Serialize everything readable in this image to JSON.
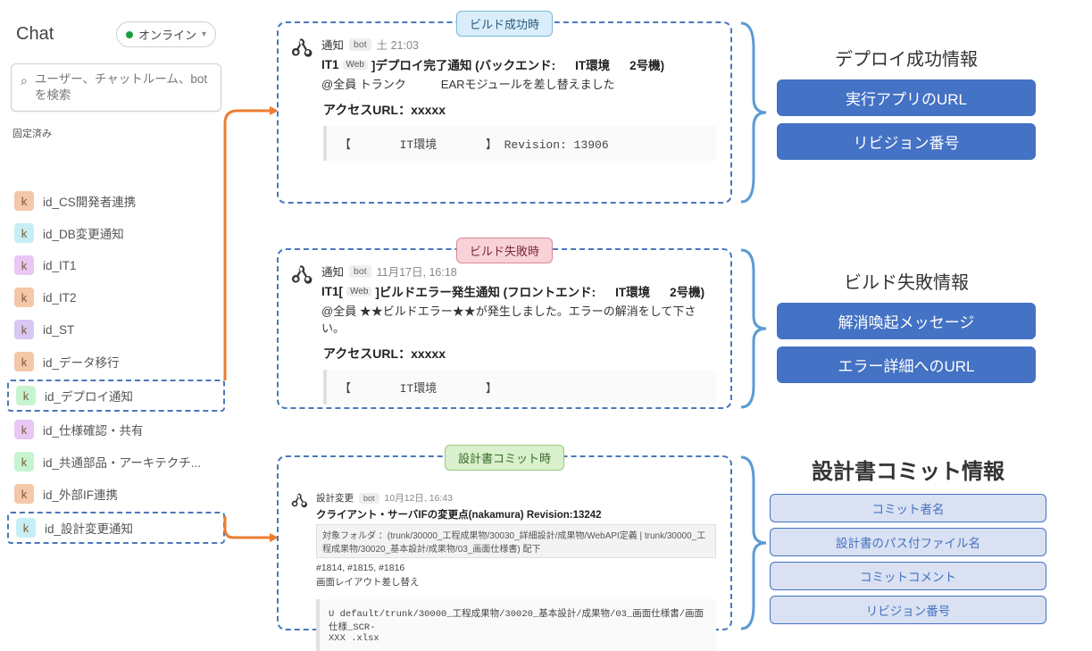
{
  "colors": {
    "dashed_border": "#4a78b8",
    "arrow": "#ed7d31",
    "badge_fill": "#4472c4",
    "badge_outline_bg": "#d9e1f2",
    "badge_outline_border": "#8ea9db",
    "brace": "#5b9bd5",
    "tag_blue_bg": "#d9eefa",
    "tag_blue_border": "#7fb8d6",
    "tag_red_bg": "#f8d2d8",
    "tag_red_border": "#d98a98",
    "tag_green_bg": "#d8f0cc",
    "tag_green_border": "#9ac880"
  },
  "sidebar": {
    "title": "Chat",
    "status": "オンライン",
    "dropdown_glyph": "▾",
    "search_placeholder": "ユーザー、チャットルーム、bot を検索",
    "pinned_label": "固定済み",
    "rooms": [
      {
        "avatar": "k",
        "av_bg": "#f4c7a8",
        "label": "id_CS開発者連携",
        "dashed": false
      },
      {
        "avatar": "k",
        "av_bg": "#c7eef4",
        "label": "id_DB変更通知",
        "dashed": false
      },
      {
        "avatar": "k",
        "av_bg": "#e8c7f4",
        "label": "id_IT1",
        "dashed": false
      },
      {
        "avatar": "k",
        "av_bg": "#f4c7a8",
        "label": "id_IT2",
        "dashed": false
      },
      {
        "avatar": "k",
        "av_bg": "#d8c7f4",
        "label": "id_ST",
        "dashed": false
      },
      {
        "avatar": "k",
        "av_bg": "#f4c7a8",
        "label": "id_データ移行",
        "dashed": false
      },
      {
        "avatar": "k",
        "av_bg": "#c7f4d0",
        "label": "id_デプロイ通知",
        "dashed": true
      },
      {
        "avatar": "k",
        "av_bg": "#e8c7f4",
        "label": "id_仕様確認・共有",
        "dashed": false
      },
      {
        "avatar": "k",
        "av_bg": "#c7f4d0",
        "label": "id_共通部品・アーキテクチ...",
        "dashed": false
      },
      {
        "avatar": "k",
        "av_bg": "#f4c7a8",
        "label": "id_外部IF連携",
        "dashed": false
      },
      {
        "avatar": "k",
        "av_bg": "#c7eef4",
        "label": "id_設計変更通知",
        "dashed": true
      }
    ]
  },
  "cards": {
    "success": {
      "tag": "ビルド成功時",
      "bot": "通知",
      "timestamp": "土 21:03",
      "title_prefix": "IT1",
      "web": "Web",
      "title_main": "]デプロイ完了通知 (バックエンド:",
      "env": "IT環境",
      "machine": "2号機)",
      "mention": "@全員 トランク　　　EARモジュールを差し替えました",
      "access_label": "アクセスURL：xxxxx",
      "code": "【       IT環境       】 Revision: 13906"
    },
    "failure": {
      "tag": "ビルド失敗時",
      "bot": "通知",
      "timestamp": "11月17日, 16:18",
      "title_prefix": "IT1[",
      "web": "Web",
      "title_main": "]ビルドエラー発生通知 (フロントエンド:",
      "env": "IT環境",
      "machine": "2号機)",
      "mention": "@全員 ★★ビルドエラー★★が発生しました。エラーの解消をして下さい。",
      "access_label": "アクセスURL：xxxxx",
      "code": "【       IT環境       】"
    },
    "commit": {
      "tag": "設計書コミット時",
      "bot": "設計変更",
      "timestamp": "10月12日, 16:43",
      "title": "クライアント・サーバIFの変更点(nakamura) Revision:13242",
      "folder": "対象フォルダ ：(trunk/30000_工程成果物/30030_詳細設計/成果物/WebAPI定義 | trunk/30000_工程成果物/30020_基本設計/成果物/03_画面仕様書) 配下",
      "lines": "#1814, #1815, #1816\n画面レイアウト差し替え",
      "code": "U   default/trunk/30000_工程成果物/30020_基本設計/成果物/03_画面仕様書/画面仕様_SCR-\n    XXX .xlsx"
    }
  },
  "info_panels": {
    "success": {
      "title": "デプロイ成功情報",
      "items": [
        "実行アプリのURL",
        "リビジョン番号"
      ]
    },
    "failure": {
      "title": "ビルド失敗情報",
      "items": [
        "解消喚起メッセージ",
        "エラー詳細へのURL"
      ]
    },
    "commit": {
      "title": "設計書コミット情報",
      "items": [
        "コミット者名",
        "設計書のパス付ファイル名",
        "コミットコメント",
        "リビジョン番号"
      ]
    }
  },
  "bot_label": "bot"
}
